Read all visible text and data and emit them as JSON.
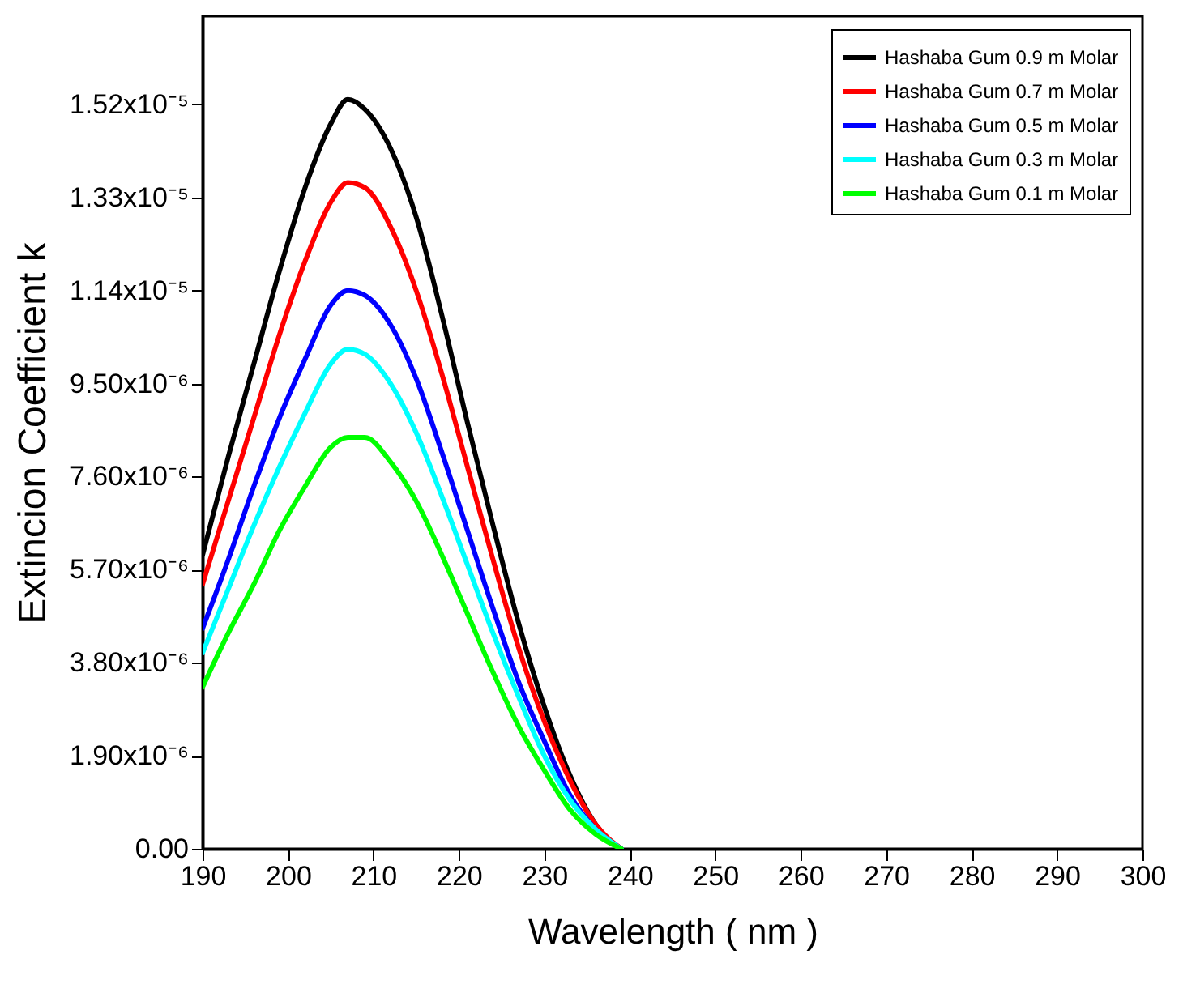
{
  "chart_data": {
    "type": "line",
    "xlabel": "Wavelength ( nm )",
    "ylabel": "Extincion Coefficient  k",
    "x": [
      190,
      193,
      196,
      199,
      202,
      205,
      207,
      209,
      212,
      215,
      218,
      221,
      224,
      227,
      230,
      233,
      236,
      239
    ],
    "series": [
      {
        "name": "Hashaba Gum 0.9 m Molar",
        "color": "#000000",
        "values": [
          6e-06,
          8e-06,
          9.9e-06,
          1.18e-05,
          1.35e-05,
          1.48e-05,
          1.53e-05,
          1.51e-05,
          1.43e-05,
          1.29e-05,
          1.09e-05,
          8.7e-06,
          6.6e-06,
          4.6e-06,
          2.9e-06,
          1.5e-06,
          5e-07,
          0
        ]
      },
      {
        "name": "Hashaba Gum 0.7 m Molar",
        "color": "#ff0000",
        "values": [
          5.4e-06,
          7.1e-06,
          8.8e-06,
          1.05e-05,
          1.2e-05,
          1.32e-05,
          1.36e-05,
          1.35e-05,
          1.27e-05,
          1.14e-05,
          9.7e-06,
          7.8e-06,
          5.9e-06,
          4.1e-06,
          2.6e-06,
          1.4e-06,
          5e-07,
          0
        ]
      },
      {
        "name": "Hashaba Gum 0.5 m Molar",
        "color": "#0000ff",
        "values": [
          4.5e-06,
          5.9e-06,
          7.4e-06,
          8.8e-06,
          1e-05,
          1.11e-05,
          1.14e-05,
          1.13e-05,
          1.07e-05,
          9.6e-06,
          8.1e-06,
          6.5e-06,
          4.9e-06,
          3.4e-06,
          2.2e-06,
          1.1e-06,
          4e-07,
          0
        ]
      },
      {
        "name": "Hashaba Gum 0.3 m Molar",
        "color": "#00ffff",
        "values": [
          4e-06,
          5.3e-06,
          6.6e-06,
          7.8e-06,
          8.9e-06,
          9.9e-06,
          1.02e-05,
          1.01e-05,
          9.5e-06,
          8.5e-06,
          7.2e-06,
          5.8e-06,
          4.4e-06,
          3.1e-06,
          1.9e-06,
          1e-06,
          4e-07,
          0
        ]
      },
      {
        "name": "Hashaba Gum 0.1 m Molar",
        "color": "#00ff00",
        "values": [
          3.3e-06,
          4.4e-06,
          5.4e-06,
          6.5e-06,
          7.4e-06,
          8.2e-06,
          8.4e-06,
          8.4e-06,
          7.9e-06,
          7.1e-06,
          6e-06,
          4.8e-06,
          3.6e-06,
          2.5e-06,
          1.6e-06,
          8e-07,
          3e-07,
          0
        ]
      }
    ],
    "xlim": [
      190,
      300
    ],
    "xticks": [
      190,
      200,
      210,
      220,
      230,
      240,
      250,
      260,
      270,
      280,
      290,
      300
    ],
    "ylim": [
      0,
      1.7e-05
    ],
    "yticks": [
      {
        "value": 0,
        "label": "0.00"
      },
      {
        "value": 1.9e-06,
        "label": "1.90x10⁻⁶"
      },
      {
        "value": 3.8e-06,
        "label": "3.80x10⁻⁶"
      },
      {
        "value": 5.7e-06,
        "label": "5.70x10⁻⁶"
      },
      {
        "value": 7.6e-06,
        "label": "7.60x10⁻⁶"
      },
      {
        "value": 9.5e-06,
        "label": "9.50x10⁻⁶"
      },
      {
        "value": 1.14e-05,
        "label": "1.14x10⁻⁵"
      },
      {
        "value": 1.33e-05,
        "label": "1.33x10⁻⁵"
      },
      {
        "value": 1.52e-05,
        "label": "1.52x10⁻⁵"
      }
    ],
    "grid": false,
    "legend": "top right",
    "marker": "none",
    "line_style": "solid"
  }
}
